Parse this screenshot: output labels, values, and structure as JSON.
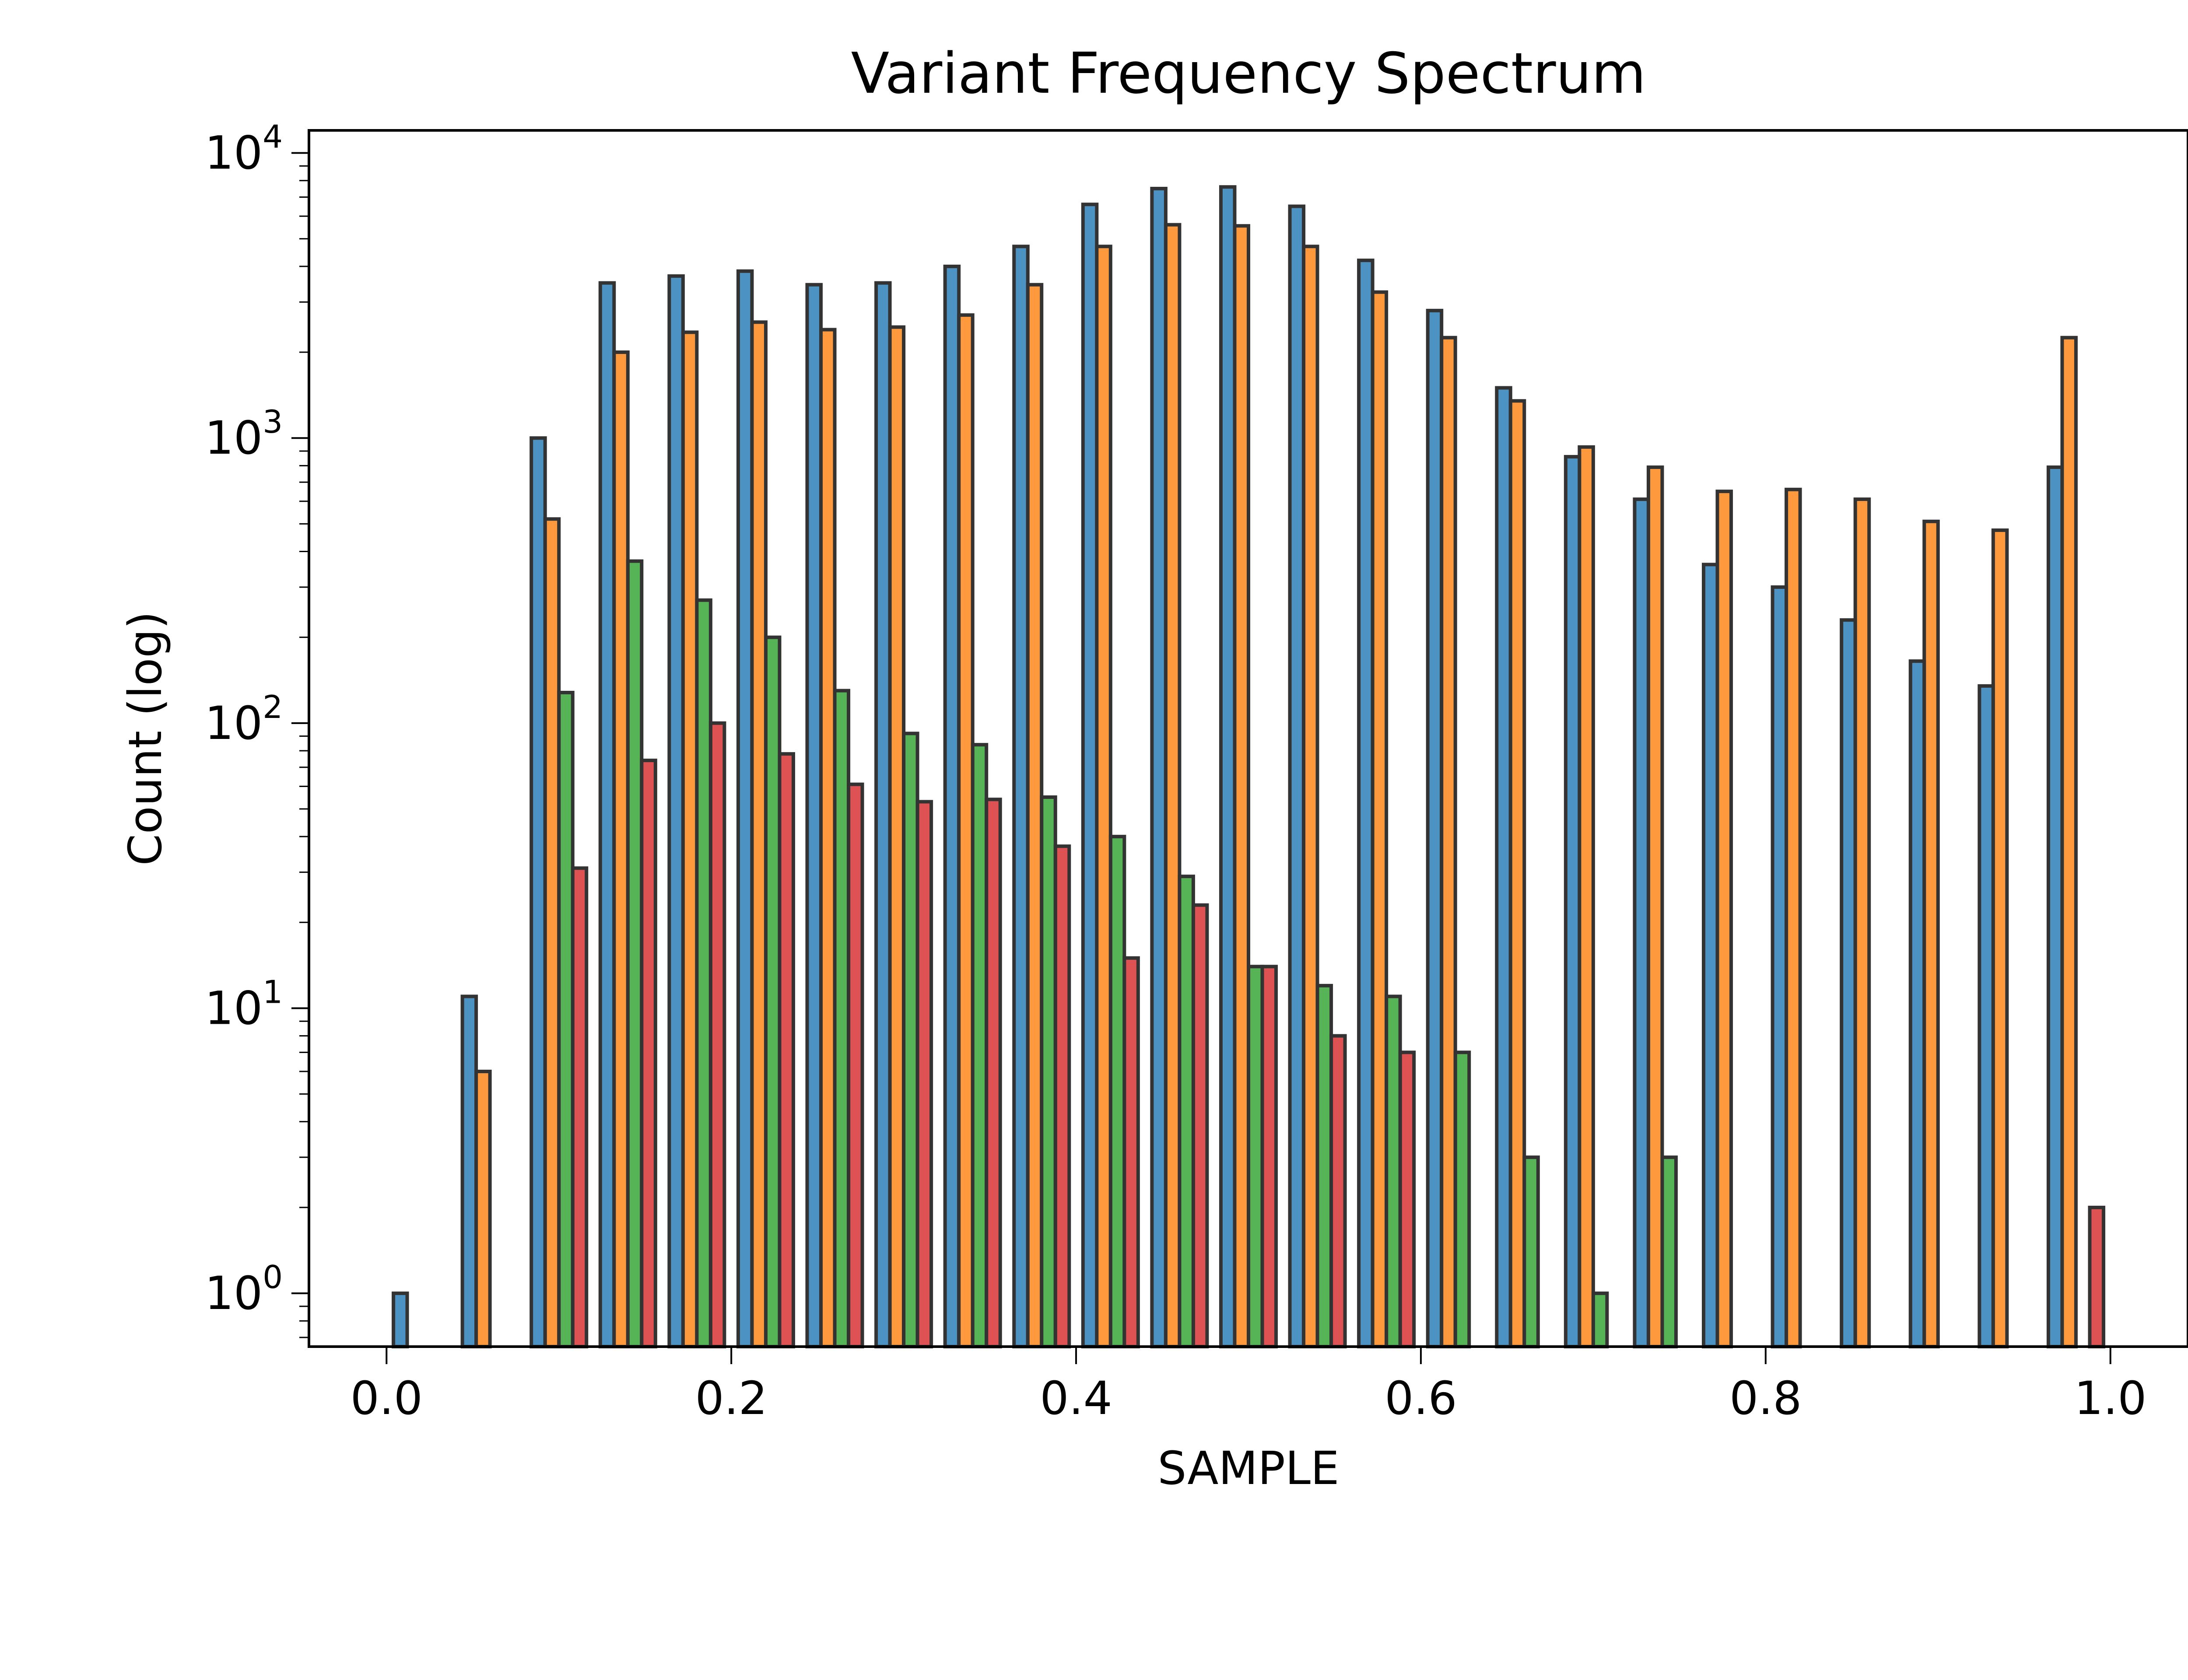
{
  "chart_data": {
    "type": "bar",
    "title": "Variant Frequency Spectrum",
    "xlabel": "SAMPLE",
    "ylabel": "Count (log)",
    "yscale": "log",
    "xlim": [
      -0.045,
      1.045
    ],
    "ylim": [
      0.65,
      12000
    ],
    "grid": false,
    "legend_position": "top-right",
    "x_ticks": [
      {
        "value": 0.0,
        "label": "0.0"
      },
      {
        "value": 0.2,
        "label": "0.2"
      },
      {
        "value": 0.4,
        "label": "0.4"
      },
      {
        "value": 0.6,
        "label": "0.6"
      },
      {
        "value": 0.8,
        "label": "0.8"
      },
      {
        "value": 1.0,
        "label": "1.0"
      }
    ],
    "y_ticks": [
      {
        "value": 1,
        "base": "10",
        "exp": "0"
      },
      {
        "value": 10,
        "base": "10",
        "exp": "1"
      },
      {
        "value": 100,
        "base": "10",
        "exp": "2"
      },
      {
        "value": 1000,
        "base": "10",
        "exp": "3"
      },
      {
        "value": 10000,
        "base": "10",
        "exp": "4"
      }
    ],
    "bin_edges": [
      0.0,
      0.04,
      0.08,
      0.12,
      0.16,
      0.2,
      0.24,
      0.28,
      0.32,
      0.36,
      0.4,
      0.44,
      0.48,
      0.52,
      0.56,
      0.6,
      0.64,
      0.68,
      0.72,
      0.76,
      0.8,
      0.84,
      0.88,
      0.92,
      0.96,
      1.0
    ],
    "series": [
      {
        "color": "#1f77b4",
        "values": [
          1,
          11,
          1000,
          3500,
          3700,
          3850,
          3450,
          3500,
          4000,
          4700,
          6600,
          7500,
          7600,
          6500,
          4200,
          2800,
          1500,
          860,
          610,
          360,
          300,
          230,
          165,
          135,
          790
        ]
      },
      {
        "color": "#ff7f0e",
        "values": [
          null,
          6,
          520,
          2000,
          2350,
          2550,
          2400,
          2450,
          2700,
          3450,
          4700,
          5600,
          5550,
          4700,
          3250,
          2250,
          1350,
          930,
          790,
          650,
          660,
          610,
          510,
          475,
          2250
        ]
      },
      {
        "color": "#2ca02c",
        "values": [
          null,
          null,
          128,
          370,
          270,
          200,
          130,
          92,
          84,
          55,
          40,
          29,
          14,
          12,
          11,
          7,
          3,
          1,
          3,
          null,
          null,
          null,
          null,
          null,
          null
        ]
      },
      {
        "color": "#d62728",
        "values": [
          null,
          null,
          31,
          74,
          100,
          78,
          61,
          53,
          54,
          37,
          15,
          23,
          14,
          8,
          7,
          null,
          null,
          null,
          null,
          null,
          null,
          null,
          null,
          null,
          2
        ]
      }
    ]
  }
}
